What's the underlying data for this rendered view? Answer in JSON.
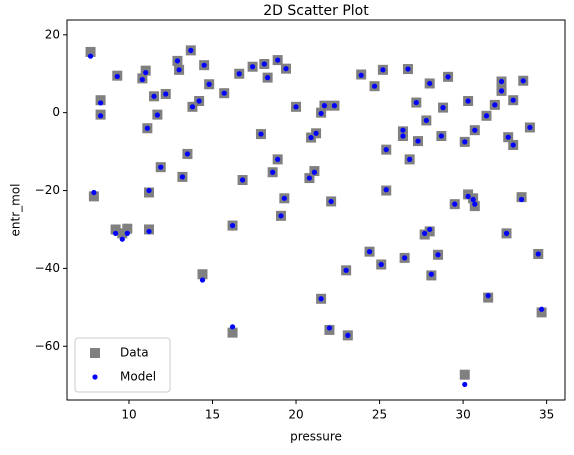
{
  "chart_data": {
    "type": "scatter",
    "title": "2D Scatter Plot",
    "x_label": "pressure",
    "y_label": "entr_mol",
    "x": [
      7.7,
      7.9,
      8.3,
      8.3,
      9.3,
      9.2,
      9.6,
      9.9,
      10.8,
      11.0,
      11.1,
      11.2,
      11.2,
      11.5,
      11.7,
      11.9,
      12.2,
      12.9,
      13.0,
      13.2,
      13.5,
      13.7,
      13.8,
      14.2,
      14.4,
      14.5,
      14.8,
      15.7,
      16.2,
      16.2,
      16.6,
      16.8,
      17.4,
      17.9,
      18.1,
      18.3,
      18.6,
      18.9,
      18.9,
      19.1,
      19.3,
      19.4,
      20.0,
      20.8,
      20.9,
      21.1,
      21.2,
      21.5,
      21.5,
      21.7,
      22.0,
      22.1,
      22.3,
      23.1,
      23.0,
      23.9,
      24.4,
      24.7,
      25.1,
      25.2,
      25.4,
      25.4,
      26.4,
      26.4,
      26.5,
      26.7,
      26.8,
      27.2,
      27.3,
      27.7,
      27.8,
      28.0,
      28.0,
      28.1,
      28.5,
      28.7,
      28.8,
      29.1,
      29.5,
      30.1,
      30.1,
      30.3,
      30.3,
      30.6,
      30.7,
      30.7,
      31.4,
      31.5,
      31.9,
      32.3,
      32.3,
      32.6,
      32.7,
      33.0,
      33.0,
      33.5,
      33.6,
      34.0,
      34.5,
      34.7
    ],
    "series": [
      {
        "name": "Data",
        "color": "#808080",
        "marker": "square",
        "values": [
          15.6,
          -21.5,
          3.2,
          -0.5,
          9.5,
          -30,
          -31,
          -29.8,
          8.8,
          10.8,
          -4,
          -20.5,
          -30,
          4.2,
          -0.5,
          -14,
          4.8,
          13.3,
          11,
          -16.5,
          -10.6,
          16,
          1.5,
          3,
          -41.5,
          12.2,
          7.3,
          5,
          -29,
          -56.5,
          10,
          -17.3,
          11.8,
          -5.5,
          12.5,
          9,
          -15.3,
          -12,
          13.5,
          -26.5,
          -22,
          11.3,
          1.5,
          -16.8,
          -6.4,
          -15,
          -5.3,
          0,
          -47.8,
          1.8,
          -55.8,
          -22.8,
          1.8,
          -57.2,
          -40.5,
          9.8,
          -35.7,
          6.8,
          -39,
          11,
          -9.5,
          -20,
          -4.8,
          -6,
          -37.3,
          11.2,
          -12,
          2.6,
          -7.3,
          -31.3,
          -2,
          7.5,
          -30.5,
          -41.8,
          -36.5,
          -6,
          1.3,
          9.2,
          -23.5,
          -67.3,
          -7.5,
          3,
          -21,
          -22,
          -24,
          -4.5,
          -0.8,
          -47.5,
          2,
          5.6,
          8,
          -31,
          -6.3,
          3.2,
          -8.3,
          -21.7,
          8.2,
          -3.8,
          -36.3,
          -51.3
        ]
      },
      {
        "name": "Model",
        "color": "#0000ff",
        "marker": "circle",
        "values": [
          14.5,
          -20.5,
          2.5,
          -0.8,
          9.3,
          -31,
          -32.5,
          -31,
          8.5,
          10.3,
          -4,
          -20,
          -30.5,
          4.2,
          -0.6,
          -14,
          4.8,
          13.3,
          11,
          -16.5,
          -10.6,
          16,
          1.5,
          3,
          -43,
          12.2,
          7.3,
          5,
          -29,
          -55,
          10,
          -17.3,
          11.8,
          -5.5,
          12.5,
          9,
          -15.3,
          -12,
          13.5,
          -26.5,
          -22,
          11.3,
          1.5,
          -16.8,
          -6.4,
          -15.3,
          -5.3,
          -0.2,
          -47.8,
          1.8,
          -55.3,
          -22.8,
          1.8,
          -57.2,
          -40.5,
          9.6,
          -35.7,
          6.8,
          -39,
          11,
          -9.5,
          -19.8,
          -4.5,
          -6,
          -37.3,
          11.2,
          -12,
          2.6,
          -7.3,
          -31,
          -2,
          7.5,
          -30,
          -41.5,
          -36.5,
          -6,
          1.3,
          9.2,
          -23.5,
          -69.8,
          -7.5,
          3,
          -21.5,
          -22.3,
          -23.5,
          -4.5,
          -0.8,
          -47,
          2,
          5.6,
          8,
          -31,
          -6.3,
          3.2,
          -8.3,
          -22.3,
          8.2,
          -3.8,
          -36.3,
          -50.5
        ]
      }
    ],
    "xlim": [
      6.29,
      36.1
    ],
    "ylim": [
      -73.8,
      23.8
    ],
    "xticks": [
      10,
      15,
      20,
      25,
      30,
      35
    ],
    "yticks": [
      20,
      0,
      {
        "value": -20,
        "label": "−20"
      },
      {
        "value": -40,
        "label": "−40"
      },
      {
        "value": -60,
        "label": "−60"
      }
    ],
    "grid": false,
    "legend": "lower left"
  }
}
